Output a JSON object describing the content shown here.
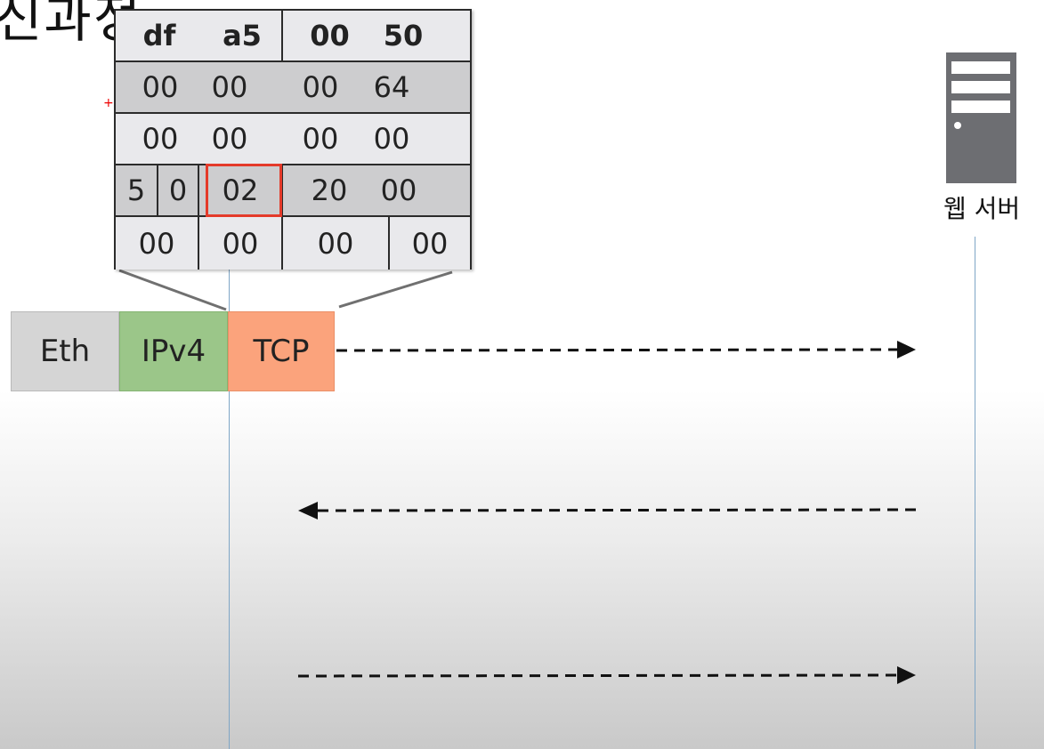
{
  "slide": {
    "title": "신과정"
  },
  "header_table": {
    "rows": [
      {
        "cells": [
          "df",
          "a5",
          "00",
          "50"
        ]
      },
      {
        "cells": [
          "00",
          "00",
          "00",
          "64"
        ]
      },
      {
        "cells": [
          "00",
          "00",
          "00",
          "00"
        ]
      },
      {
        "cells": [
          "5",
          "0",
          "02",
          "20",
          "00"
        ]
      },
      {
        "cells": [
          "00",
          "00",
          "00",
          "00"
        ]
      }
    ],
    "highlight_color": "#e43a2a"
  },
  "packet": {
    "layers": [
      "Eth",
      "IPv4",
      "TCP"
    ],
    "colors": {
      "eth": "#d5d5d5",
      "ipv4": "#9bc689",
      "tcp": "#fba37c"
    }
  },
  "server": {
    "label": "웹 서버",
    "icon": "server-icon"
  },
  "arrows": [
    {
      "direction": "right"
    },
    {
      "direction": "left"
    },
    {
      "direction": "right"
    }
  ]
}
